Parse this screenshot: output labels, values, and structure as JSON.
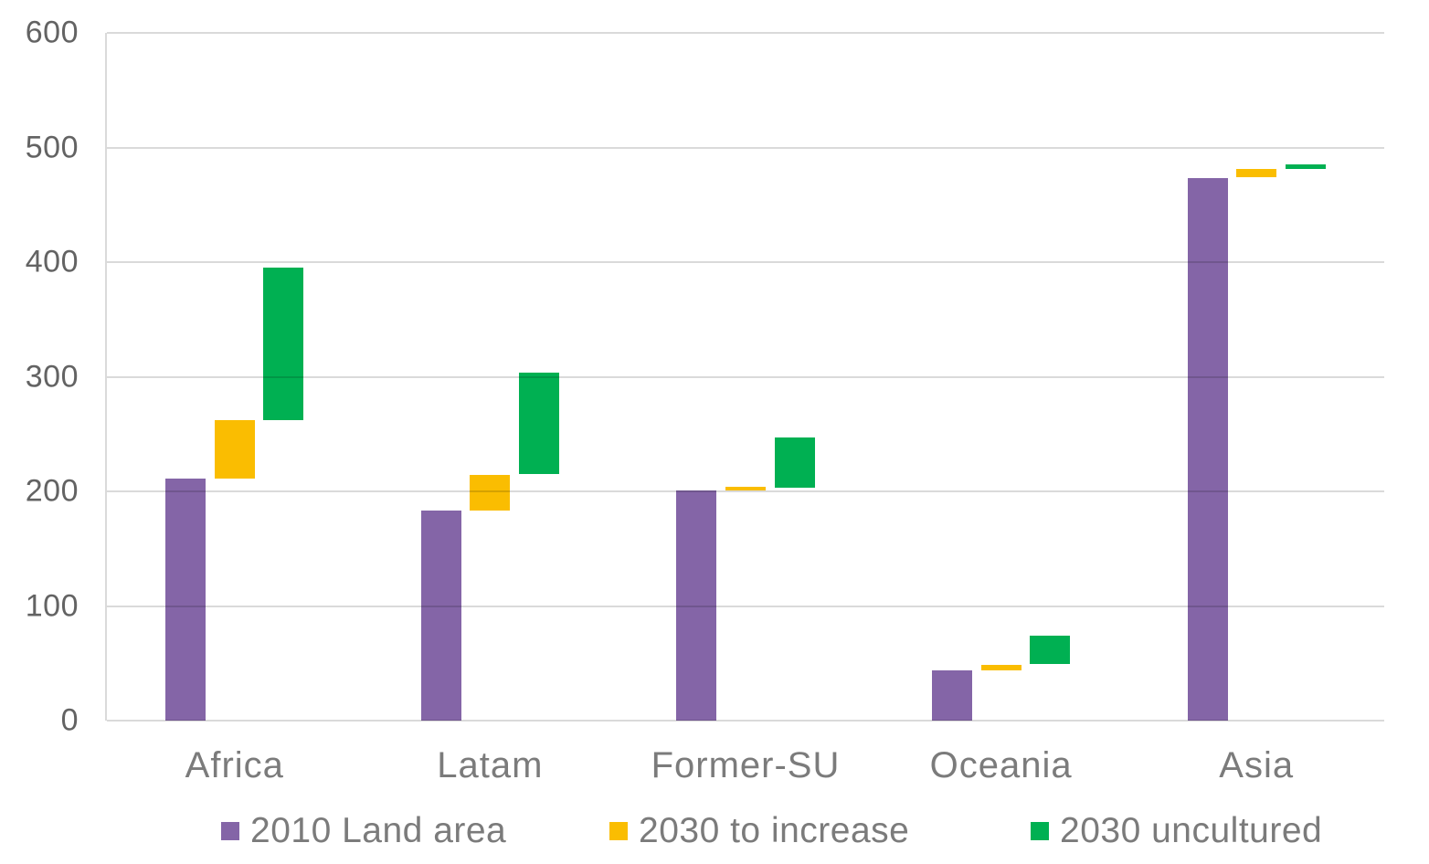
{
  "chart_data": {
    "type": "bar",
    "subtype": "floating-column-waterfall",
    "title": "",
    "xlabel": "",
    "ylabel": "",
    "categories": [
      "Africa",
      "Latam",
      "Former-SU",
      "Oceania",
      "Asia"
    ],
    "series": [
      {
        "name": "2010 Land area",
        "color": "#8465A7",
        "segments": [
          [
            0,
            211
          ],
          [
            0,
            183
          ],
          [
            0,
            201
          ],
          [
            0,
            44
          ],
          [
            0,
            473
          ]
        ]
      },
      {
        "name": "2030 to increase",
        "color": "#FABD01",
        "segments": [
          [
            211,
            262
          ],
          [
            183,
            214
          ],
          [
            201,
            204
          ],
          [
            44,
            49
          ],
          [
            474,
            481
          ]
        ]
      },
      {
        "name": "2030 uncultured",
        "color": "#00B052",
        "segments": [
          [
            262,
            395
          ],
          [
            215,
            304
          ],
          [
            203,
            247
          ],
          [
            49,
            74
          ],
          [
            481,
            485
          ]
        ]
      }
    ],
    "y_axis": {
      "min": 0,
      "max": 600,
      "tick_step": 100,
      "ticks": [
        0,
        100,
        200,
        300,
        400,
        500,
        600
      ]
    },
    "grid": true,
    "legend_position": "bottom",
    "colors": {
      "gridline": "#d9d9d9",
      "y_axis_text": "#636363",
      "x_axis_text": "#7b7b7b",
      "legend_text": "#7b7b7b",
      "background": "#ffffff"
    }
  }
}
